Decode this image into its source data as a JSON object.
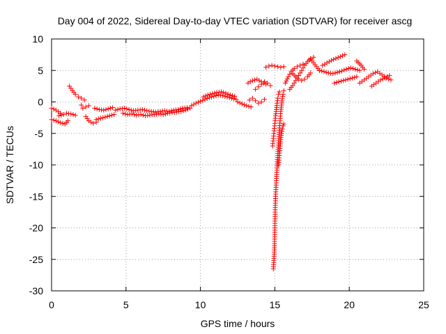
{
  "chart_data": {
    "type": "scatter",
    "title": "Day 004 of 2022, Sidereal Day-to-day VTEC variation (SDTVAR) for receiver ascg",
    "xlabel": "GPS time / hours",
    "ylabel": "SDTVAR / TECUs",
    "xlim": [
      0,
      25
    ],
    "ylim": [
      -30,
      10
    ],
    "x_ticks": [
      0,
      5,
      10,
      15,
      20,
      25
    ],
    "x_tick_labels": [
      "0",
      "5",
      "10",
      "15",
      "20",
      "25"
    ],
    "y_ticks": [
      -30,
      -25,
      -20,
      -15,
      -10,
      -5,
      0,
      5,
      10
    ],
    "y_tick_labels": [
      "-30",
      "-25",
      "-20",
      "-15",
      "-10",
      "-5",
      "0",
      "5",
      "10"
    ],
    "grid": true,
    "marker": "+",
    "color": "#ff0000",
    "series": [
      {
        "name": "SDTVAR",
        "segments": [
          {
            "x": [
              0.0,
              0.3,
              0.6
            ],
            "y": [
              -1.0,
              -1.3,
              -1.8
            ]
          },
          {
            "x": [
              0.0,
              0.3,
              0.6,
              0.9,
              1.1
            ],
            "y": [
              -2.8,
              -3.0,
              -3.3,
              -3.5,
              -3.0
            ]
          },
          {
            "x": [
              0.5,
              0.8,
              1.0,
              1.3,
              1.6
            ],
            "y": [
              -2.2,
              -2.0,
              -1.8,
              -1.9,
              -2.1
            ]
          },
          {
            "x": [
              1.2,
              1.4,
              1.6,
              1.8,
              2.0,
              2.2
            ],
            "y": [
              2.5,
              1.8,
              1.2,
              0.8,
              0.6,
              0.3
            ]
          },
          {
            "x": [
              2.0,
              2.1,
              2.3,
              2.5
            ],
            "y": [
              -0.5,
              -1.0,
              -0.8,
              -0.6
            ]
          },
          {
            "x": [
              2.3,
              2.5,
              2.8,
              3.0
            ],
            "y": [
              -2.3,
              -3.0,
              -3.4,
              -3.2
            ]
          },
          {
            "x": [
              3.0,
              3.3,
              3.6,
              3.9,
              4.2
            ],
            "y": [
              -2.8,
              -2.6,
              -2.4,
              -2.2,
              -2.0
            ]
          },
          {
            "x": [
              2.9,
              3.2,
              3.5,
              3.8,
              4.1
            ],
            "y": [
              -1.0,
              -1.2,
              -1.3,
              -1.1,
              -0.9
            ]
          },
          {
            "x": [
              4.3,
              4.6,
              4.9,
              5.2,
              5.5,
              5.8,
              6.1,
              6.4,
              6.7,
              7.0,
              7.3,
              7.6,
              7.9,
              8.2,
              8.5,
              8.8,
              9.1
            ],
            "y": [
              -1.3,
              -1.1,
              -1.0,
              -1.2,
              -1.4,
              -1.3,
              -1.2,
              -1.4,
              -1.5,
              -1.6,
              -1.5,
              -1.4,
              -1.5,
              -1.3,
              -1.2,
              -1.0,
              -0.9
            ]
          },
          {
            "x": [
              4.8,
              5.1,
              5.4,
              5.7,
              6.0,
              6.3,
              6.6,
              6.9,
              7.2,
              7.5,
              7.8,
              8.1,
              8.4,
              8.7,
              9.0,
              9.3
            ],
            "y": [
              -1.8,
              -2.0,
              -1.9,
              -2.1,
              -2.0,
              -2.2,
              -2.1,
              -2.0,
              -1.9,
              -2.0,
              -1.8,
              -1.7,
              -1.6,
              -1.5,
              -1.3,
              -1.0
            ]
          },
          {
            "x": [
              9.4,
              9.7,
              10.0,
              10.3,
              10.6,
              10.9,
              11.2,
              11.5,
              11.8,
              12.1,
              12.4
            ],
            "y": [
              -0.6,
              -0.2,
              0.1,
              0.4,
              0.7,
              0.9,
              1.1,
              1.0,
              0.8,
              0.6,
              0.4
            ]
          },
          {
            "x": [
              10.2,
              10.5,
              10.8,
              11.1,
              11.4,
              11.7,
              12.0,
              12.3
            ],
            "y": [
              0.8,
              1.1,
              1.3,
              1.5,
              1.6,
              1.4,
              1.1,
              0.9
            ]
          },
          {
            "x": [
              12.5,
              12.8,
              13.1,
              13.4
            ],
            "y": [
              0.0,
              -0.3,
              -0.6,
              -0.8
            ]
          },
          {
            "x": [
              13.3,
              13.5,
              13.7,
              13.9,
              14.1,
              14.3
            ],
            "y": [
              0.3,
              0.6,
              0.2,
              -0.2,
              0.0,
              0.4
            ]
          },
          {
            "x": [
              13.2,
              13.5,
              13.8,
              14.1,
              14.4
            ],
            "y": [
              3.0,
              3.4,
              3.6,
              3.2,
              2.8
            ]
          },
          {
            "x": [
              13.7,
              13.9,
              14.1,
              14.3,
              14.5,
              14.7
            ],
            "y": [
              2.0,
              2.4,
              2.8,
              3.2,
              3.0,
              2.6
            ]
          },
          {
            "x": [
              14.4,
              14.6,
              14.8,
              15.0,
              15.2,
              15.4,
              15.6
            ],
            "y": [
              5.5,
              5.7,
              5.8,
              5.7,
              5.6,
              5.5,
              5.6
            ]
          },
          {
            "x": [
              14.9,
              14.95,
              14.98,
              15.0,
              15.02,
              15.05,
              15.1,
              15.15,
              15.2,
              15.25,
              15.3,
              15.35,
              15.4,
              15.45,
              15.5,
              15.55,
              15.6
            ],
            "y": [
              -26.5,
              -24.5,
              -22.5,
              -20.0,
              -17.5,
              -15.0,
              -12.5,
              -10.5,
              -8.5,
              -6.5,
              -4.5,
              -3.0,
              -1.5,
              -0.5,
              0.5,
              1.2,
              1.8
            ]
          },
          {
            "x": [
              14.85,
              14.9,
              14.95,
              15.0,
              15.05,
              15.1,
              15.15,
              15.2,
              15.25,
              15.3
            ],
            "y": [
              -7.0,
              -5.8,
              -4.6,
              -3.4,
              -2.2,
              -1.2,
              -0.2,
              0.6,
              1.2,
              1.6
            ]
          },
          {
            "x": [
              15.25,
              15.3,
              15.35,
              15.4,
              15.45,
              15.5,
              15.55,
              15.6
            ],
            "y": [
              -10.0,
              -8.5,
              -7.0,
              -6.0,
              -5.0,
              -4.3,
              -3.8,
              -3.5
            ]
          },
          {
            "x": [
              15.7,
              15.9,
              16.1,
              16.3,
              16.5,
              16.7,
              16.9
            ],
            "y": [
              3.0,
              4.0,
              4.8,
              5.3,
              5.6,
              5.8,
              6.0
            ]
          },
          {
            "x": [
              16.0,
              16.2,
              16.4,
              16.6,
              16.8,
              17.0,
              17.2,
              17.4,
              17.6
            ],
            "y": [
              2.0,
              2.6,
              3.4,
              4.2,
              5.0,
              5.8,
              6.4,
              6.9,
              7.1
            ]
          },
          {
            "x": [
              16.2,
              16.4,
              16.6,
              16.8,
              17.0,
              17.2,
              17.4
            ],
            "y": [
              4.5,
              4.0,
              3.6,
              3.4,
              3.6,
              4.0,
              4.6
            ]
          },
          {
            "x": [
              17.4,
              17.6,
              17.8,
              18.0
            ],
            "y": [
              6.8,
              6.2,
              5.6,
              5.0
            ]
          },
          {
            "x": [
              18.0,
              18.3,
              18.6,
              18.9,
              19.2,
              19.5,
              19.8,
              20.1,
              20.4,
              20.7
            ],
            "y": [
              5.0,
              4.8,
              4.6,
              4.5,
              4.7,
              4.9,
              5.2,
              5.4,
              5.2,
              5.0
            ]
          },
          {
            "x": [
              18.2,
              18.5,
              18.8,
              19.1,
              19.4,
              19.7
            ],
            "y": [
              5.8,
              6.2,
              6.6,
              6.9,
              7.2,
              7.5
            ]
          },
          {
            "x": [
              19.0,
              19.3,
              19.6,
              19.9,
              20.2,
              20.5
            ],
            "y": [
              3.0,
              3.2,
              3.4,
              3.6,
              3.8,
              4.0
            ]
          },
          {
            "x": [
              20.5,
              20.8,
              21.0
            ],
            "y": [
              6.5,
              5.8,
              5.2
            ]
          },
          {
            "x": [
              20.7,
              21.0,
              21.3,
              21.6,
              21.9,
              22.2,
              22.5,
              22.8
            ],
            "y": [
              3.0,
              3.5,
              4.0,
              4.5,
              4.8,
              4.3,
              3.8,
              3.5
            ]
          },
          {
            "x": [
              21.5,
              21.8,
              22.1,
              22.4,
              22.7
            ],
            "y": [
              2.5,
              3.0,
              3.5,
              3.8,
              4.2
            ]
          }
        ]
      }
    ]
  }
}
